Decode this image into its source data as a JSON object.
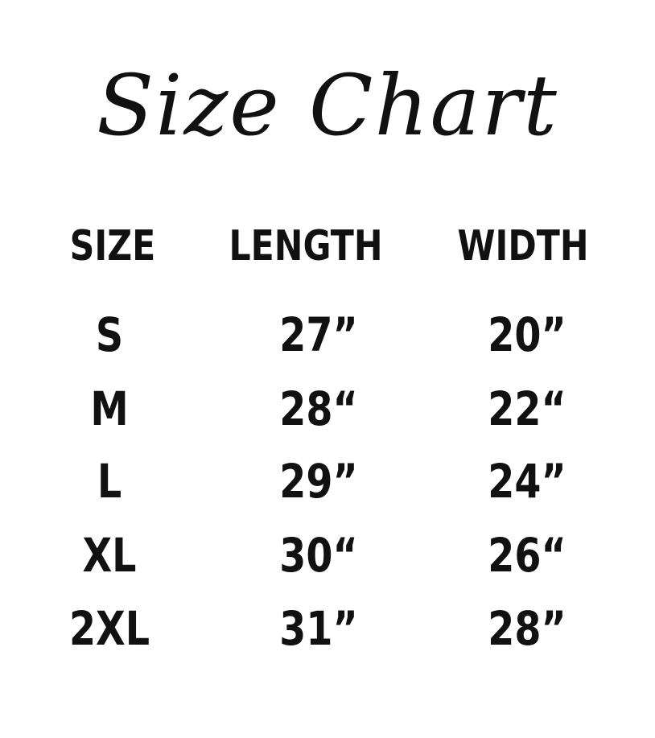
{
  "title": "Size Chart",
  "table": {
    "headers": [
      "SIZE",
      "LENGTH",
      "WIDTH"
    ],
    "rows": [
      {
        "size": "S",
        "length": "27”",
        "width": "20”"
      },
      {
        "size": "M",
        "length": "28“",
        "width": "22“"
      },
      {
        "size": "L",
        "length": "29”",
        "width": "24”"
      },
      {
        "size": "XL",
        "length": "30“",
        "width": "26“"
      },
      {
        "size": "2XL",
        "length": "31”",
        "width": "28”"
      }
    ]
  }
}
